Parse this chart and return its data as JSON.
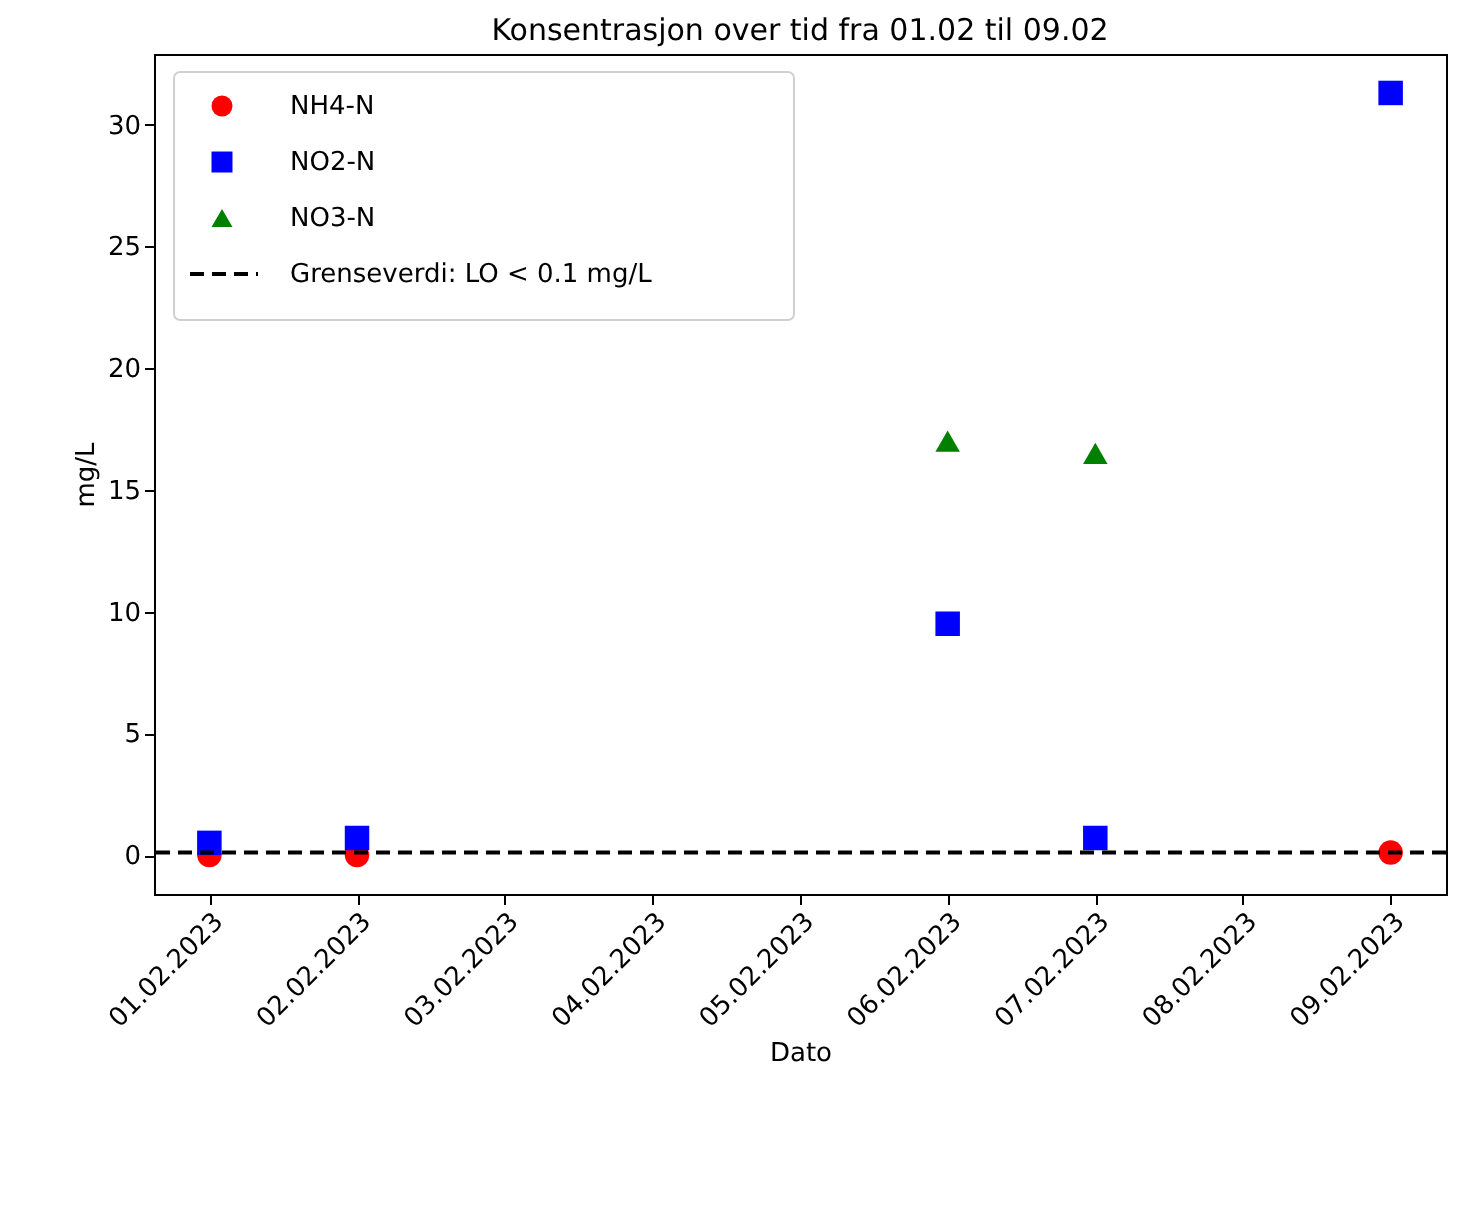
{
  "chart_data": {
    "type": "scatter",
    "title": "Konsentrasjon over tid fra 01.02 til 09.02",
    "xlabel": "Dato",
    "ylabel": "mg/L",
    "xlim": [
      "2023-01-31T15:00",
      "2023-02-09T09:00"
    ],
    "xticks": [
      {
        "value": "2023-02-01",
        "label": "01.02.2023"
      },
      {
        "value": "2023-02-02",
        "label": "02.02.2023"
      },
      {
        "value": "2023-02-03",
        "label": "03.02.2023"
      },
      {
        "value": "2023-02-04",
        "label": "04.02.2023"
      },
      {
        "value": "2023-02-05",
        "label": "05.02.2023"
      },
      {
        "value": "2023-02-06",
        "label": "06.02.2023"
      },
      {
        "value": "2023-02-07",
        "label": "07.02.2023"
      },
      {
        "value": "2023-02-08",
        "label": "08.02.2023"
      },
      {
        "value": "2023-02-09",
        "label": "09.02.2023"
      }
    ],
    "ylim": [
      -1.6,
      32.9
    ],
    "yticks": [
      0,
      5,
      10,
      15,
      20,
      25,
      30
    ],
    "series": [
      {
        "name": "NH4-N",
        "color": "#ff0000",
        "marker": "circle",
        "x": [
          "2023-02-01",
          "2023-02-02",
          "2023-02-09"
        ],
        "values": [
          0,
          0,
          0.1
        ]
      },
      {
        "name": "NO2-N",
        "color": "#0000ff",
        "marker": "square",
        "x": [
          "2023-02-01",
          "2023-02-02",
          "2023-02-06",
          "2023-02-07",
          "2023-02-09"
        ],
        "values": [
          0.5,
          0.7,
          9.5,
          0.7,
          31.3
        ]
      },
      {
        "name": "NO3-N",
        "color": "#008000",
        "marker": "triangle",
        "x": [
          "2023-02-06",
          "2023-02-07"
        ],
        "values": [
          17.0,
          16.5
        ]
      }
    ],
    "ref_lines": [
      {
        "axis": "y",
        "value": 0.1,
        "label": "Grenseverdi: LO < 0.1 mg/L",
        "color": "#000000",
        "line_style": "dashed"
      }
    ],
    "legend": "top left",
    "grid": false
  }
}
